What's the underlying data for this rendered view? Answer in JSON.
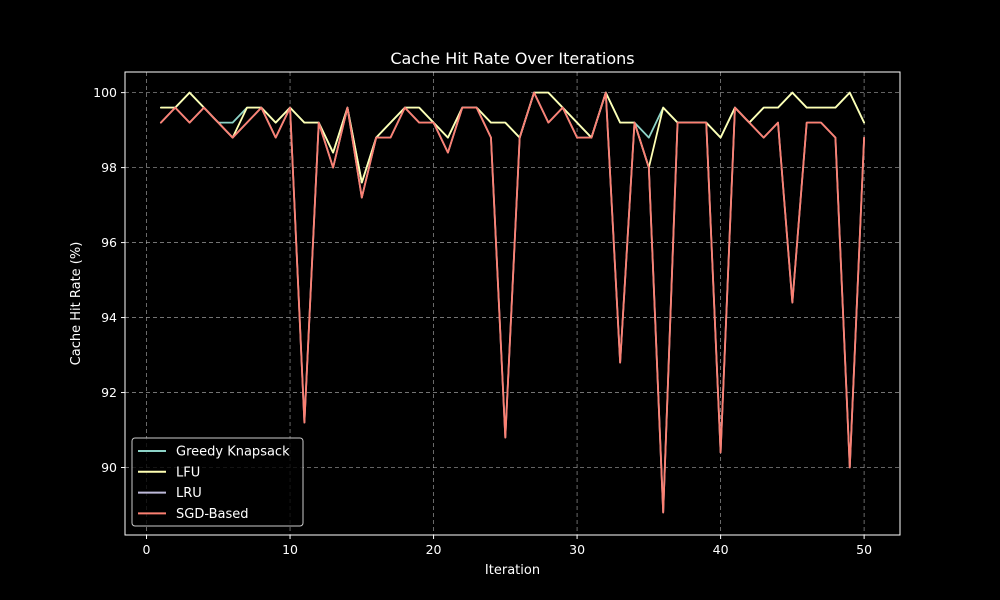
{
  "chart_data": {
    "type": "line",
    "title": "Cache Hit Rate Over Iterations",
    "xlabel": "Iteration",
    "ylabel": "Cache Hit Rate (%)",
    "xlim": [
      -1.5,
      52.5
    ],
    "ylim": [
      88.2,
      100.55
    ],
    "xticks": [
      0,
      10,
      20,
      30,
      40,
      50
    ],
    "yticks": [
      90,
      92,
      94,
      96,
      98,
      100
    ],
    "grid": true,
    "legend_position": "lower-left",
    "x": [
      1,
      2,
      3,
      4,
      5,
      6,
      7,
      8,
      9,
      10,
      11,
      12,
      13,
      14,
      15,
      16,
      17,
      18,
      19,
      20,
      21,
      22,
      23,
      24,
      25,
      26,
      27,
      28,
      29,
      30,
      31,
      32,
      33,
      34,
      35,
      36,
      37,
      38,
      39,
      40,
      41,
      42,
      43,
      44,
      45,
      46,
      47,
      48,
      49,
      50
    ],
    "series": [
      {
        "name": "Greedy Knapsack",
        "color": "#8dd3c7",
        "values": [
          99.6,
          99.6,
          100.0,
          99.6,
          99.2,
          99.2,
          99.6,
          99.6,
          99.2,
          99.6,
          99.2,
          99.2,
          98.4,
          99.6,
          97.6,
          98.8,
          99.2,
          99.6,
          99.6,
          99.2,
          98.8,
          99.6,
          99.6,
          99.2,
          99.2,
          98.8,
          100.0,
          100.0,
          99.6,
          99.2,
          98.8,
          100.0,
          99.2,
          99.2,
          98.8,
          99.6,
          99.2,
          99.2,
          99.2,
          98.8,
          99.6,
          99.2,
          99.6,
          99.6,
          100.0,
          99.6,
          99.6,
          99.6,
          100.0,
          99.2
        ]
      },
      {
        "name": "LFU",
        "color": "#ffffb3",
        "values": [
          99.6,
          99.6,
          100.0,
          99.6,
          99.2,
          98.8,
          99.6,
          99.6,
          99.2,
          99.6,
          99.2,
          99.2,
          98.4,
          99.6,
          97.6,
          98.8,
          99.2,
          99.6,
          99.6,
          99.2,
          98.8,
          99.6,
          99.6,
          99.2,
          99.2,
          98.8,
          100.0,
          100.0,
          99.6,
          99.2,
          98.8,
          100.0,
          99.2,
          99.2,
          98.0,
          99.6,
          99.2,
          99.2,
          99.2,
          98.8,
          99.6,
          99.2,
          99.6,
          99.6,
          100.0,
          99.6,
          99.6,
          99.6,
          100.0,
          99.2
        ]
      },
      {
        "name": "LRU",
        "color": "#bebada",
        "values": [
          99.2,
          99.6,
          99.2,
          99.6,
          99.2,
          98.8,
          99.2,
          99.6,
          98.8,
          99.6,
          91.2,
          99.2,
          98.0,
          99.6,
          97.2,
          98.8,
          98.8,
          99.6,
          99.2,
          99.2,
          98.4,
          99.6,
          99.6,
          98.8,
          90.8,
          98.8,
          100.0,
          99.2,
          99.6,
          98.8,
          98.8,
          100.0,
          92.8,
          99.2,
          98.0,
          88.8,
          99.2,
          99.2,
          99.2,
          90.4,
          99.6,
          99.2,
          98.8,
          99.2,
          94.4,
          99.2,
          99.2,
          98.8,
          90.0,
          98.8
        ]
      },
      {
        "name": "SGD-Based",
        "color": "#fb8072",
        "values": [
          99.2,
          99.6,
          99.2,
          99.6,
          99.2,
          98.8,
          99.2,
          99.6,
          98.8,
          99.6,
          91.2,
          99.2,
          98.0,
          99.6,
          97.2,
          98.8,
          98.8,
          99.6,
          99.2,
          99.2,
          98.4,
          99.6,
          99.6,
          98.8,
          90.8,
          98.8,
          100.0,
          99.2,
          99.6,
          98.8,
          98.8,
          100.0,
          92.8,
          99.2,
          98.0,
          88.8,
          99.2,
          99.2,
          99.2,
          90.4,
          99.6,
          99.2,
          98.8,
          99.2,
          94.4,
          99.2,
          99.2,
          98.8,
          90.0,
          98.8
        ]
      }
    ]
  }
}
